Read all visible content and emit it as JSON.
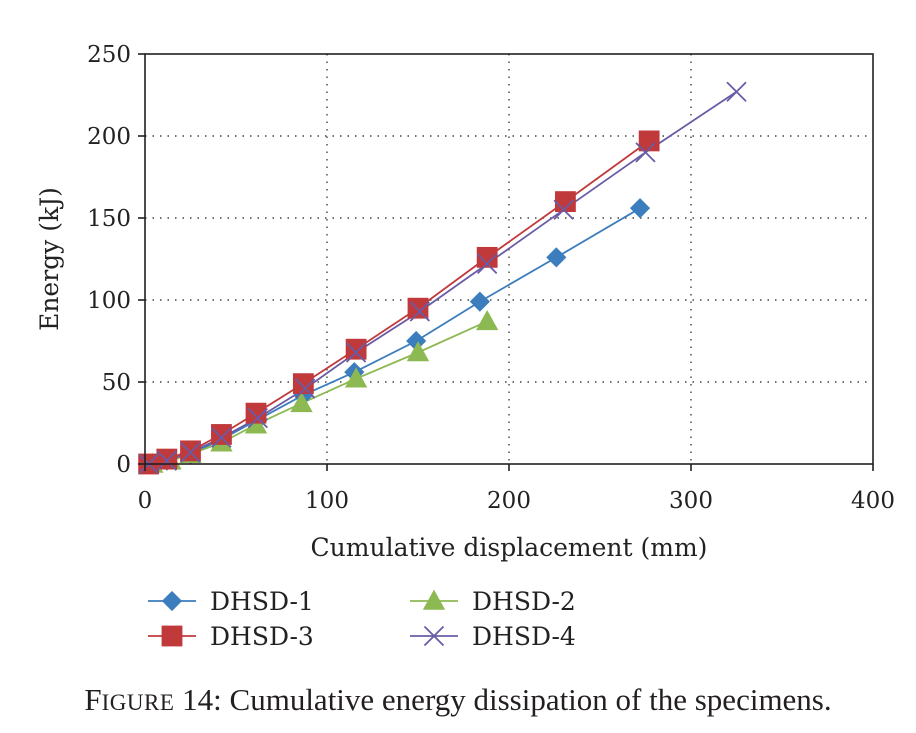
{
  "figure": {
    "caption_label": "Figure 14:",
    "caption_text": "Cumulative energy dissipation of the specimens."
  },
  "chart_data": {
    "type": "line",
    "xlabel": "Cumulative displacement (mm)",
    "ylabel": "Energy (kJ)",
    "xlim": [
      0,
      400
    ],
    "ylim": [
      0,
      250
    ],
    "xticks": [
      0,
      100,
      200,
      300,
      400
    ],
    "yticks": [
      0,
      50,
      100,
      150,
      200,
      250
    ],
    "grid": "dotted",
    "legend_position": "bottom",
    "series": [
      {
        "name": "DHSD-1",
        "marker": "diamond",
        "color": "#3b7dbd",
        "points": [
          [
            2,
            0
          ],
          [
            12,
            2
          ],
          [
            25,
            6
          ],
          [
            42,
            15
          ],
          [
            62,
            27
          ],
          [
            87,
            42
          ],
          [
            115,
            56
          ],
          [
            149,
            75
          ],
          [
            184,
            99
          ],
          [
            226,
            126
          ],
          [
            272,
            156
          ]
        ]
      },
      {
        "name": "DHSD-2",
        "marker": "triangle",
        "color": "#8db953",
        "points": [
          [
            4,
            0
          ],
          [
            14,
            2
          ],
          [
            25,
            6
          ],
          [
            42,
            13
          ],
          [
            61,
            24
          ],
          [
            86,
            37
          ],
          [
            116,
            52
          ],
          [
            150,
            68
          ],
          [
            188,
            87
          ]
        ]
      },
      {
        "name": "DHSD-3",
        "marker": "square",
        "color": "#c0393b",
        "points": [
          [
            2,
            0
          ],
          [
            12,
            3
          ],
          [
            25,
            8
          ],
          [
            42,
            18
          ],
          [
            61,
            31
          ],
          [
            87,
            49
          ],
          [
            116,
            70
          ],
          [
            150,
            95
          ],
          [
            188,
            126
          ],
          [
            231,
            160
          ],
          [
            277,
            197
          ]
        ]
      },
      {
        "name": "DHSD-4",
        "marker": "x",
        "color": "#6a5ba6",
        "points": [
          [
            2,
            0
          ],
          [
            12,
            2
          ],
          [
            25,
            7
          ],
          [
            42,
            16
          ],
          [
            62,
            28
          ],
          [
            88,
            46
          ],
          [
            116,
            68
          ],
          [
            151,
            93
          ],
          [
            188,
            122
          ],
          [
            230,
            155
          ],
          [
            275,
            190
          ],
          [
            325,
            227
          ]
        ]
      }
    ]
  }
}
